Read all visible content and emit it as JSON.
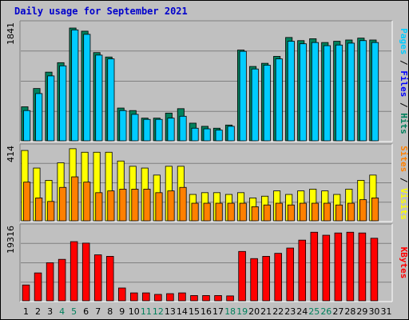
{
  "chart_data": {
    "type": "bar",
    "title": "Daily usage for September 2021",
    "categories": [
      "1",
      "2",
      "3",
      "4",
      "5",
      "6",
      "7",
      "8",
      "9",
      "10",
      "11",
      "12",
      "13",
      "14",
      "15",
      "16",
      "17",
      "18",
      "19",
      "20",
      "21",
      "22",
      "23",
      "24",
      "25",
      "26",
      "27",
      "28",
      "29",
      "30",
      "31"
    ],
    "weekend_days": [
      4,
      5,
      11,
      12,
      18,
      19,
      25,
      26
    ],
    "colors": {
      "hits": "#00805c",
      "files": "#00ccff",
      "pages": "#00ccff",
      "visits": "#ffff00",
      "sites": "#ff8000",
      "kbytes": "#ff0000",
      "weekday_tick": "#000000",
      "weekend_tick": "#00805c"
    },
    "panels": [
      {
        "id": "hits",
        "ymax_label": "1841",
        "ylim": [
          0,
          1841
        ],
        "right_label_parts": [
          {
            "text": "Pages",
            "color": "#00ccff"
          },
          {
            "text": " / ",
            "color": "#000000"
          },
          {
            "text": "Files",
            "color": "#0000ff"
          },
          {
            "text": " / ",
            "color": "#000000"
          },
          {
            "text": "Hits",
            "color": "#00805c"
          }
        ],
        "series": [
          {
            "name": "Hits",
            "color": "#00805c",
            "values": [
              540,
              830,
              1090,
              1240,
              1790,
              1740,
              1400,
              1330,
              520,
              480,
              360,
              360,
              440,
              510,
              280,
              230,
              200,
              250,
              1440,
              1180,
              1230,
              1340,
              1640,
              1590,
              1620,
              1560,
              1580,
              1600,
              1630,
              1600,
              0
            ]
          },
          {
            "name": "Files",
            "color": "#00ccff",
            "values": [
              480,
              750,
              1030,
              1190,
              1760,
              1690,
              1360,
              1300,
              480,
              420,
              340,
              340,
              360,
              390,
              200,
              190,
              170,
              230,
              1420,
              1140,
              1200,
              1300,
              1580,
              1540,
              1560,
              1510,
              1520,
              1550,
              1590,
              1560,
              0
            ]
          }
        ]
      },
      {
        "id": "visits",
        "ymax_label": "414",
        "ylim": [
          0,
          414
        ],
        "right_label_parts": [
          {
            "text": "Sites",
            "color": "#ff8000"
          },
          {
            "text": " / ",
            "color": "#000000"
          },
          {
            "text": "Visits",
            "color": "#ffff00"
          }
        ],
        "series": [
          {
            "name": "Visits",
            "color": "#ffff00",
            "values": [
              400,
              300,
              230,
              330,
              410,
              390,
              390,
              390,
              340,
              310,
              300,
              260,
              310,
              310,
              150,
              160,
              160,
              150,
              160,
              130,
              140,
              170,
              150,
              170,
              180,
              170,
              150,
              180,
              230,
              260,
              0
            ]
          },
          {
            "name": "Sites",
            "color": "#ff8000",
            "values": [
              220,
              130,
              110,
              190,
              250,
              220,
              160,
              170,
              180,
              180,
              180,
              160,
              170,
              190,
              100,
              100,
              100,
              100,
              100,
              80,
              90,
              100,
              90,
              100,
              100,
              100,
              90,
              100,
              120,
              130,
              0
            ]
          }
        ]
      },
      {
        "id": "kbytes",
        "ymax_label": "19316",
        "ylim": [
          0,
          19316
        ],
        "right_label_parts": [
          {
            "text": "KBytes",
            "color": "#ff0000"
          }
        ],
        "series": [
          {
            "name": "KBytes",
            "color": "#ff0000",
            "values": [
              4200,
              7400,
              10100,
              11000,
              15700,
              15300,
              12200,
              11800,
              3400,
              2100,
              2100,
              1700,
              1900,
              2100,
              1400,
              1400,
              1400,
              1300,
              13100,
              11200,
              11800,
              12600,
              14000,
              16100,
              18200,
              17400,
              18000,
              18200,
              18000,
              16600,
              0
            ]
          }
        ]
      }
    ]
  }
}
